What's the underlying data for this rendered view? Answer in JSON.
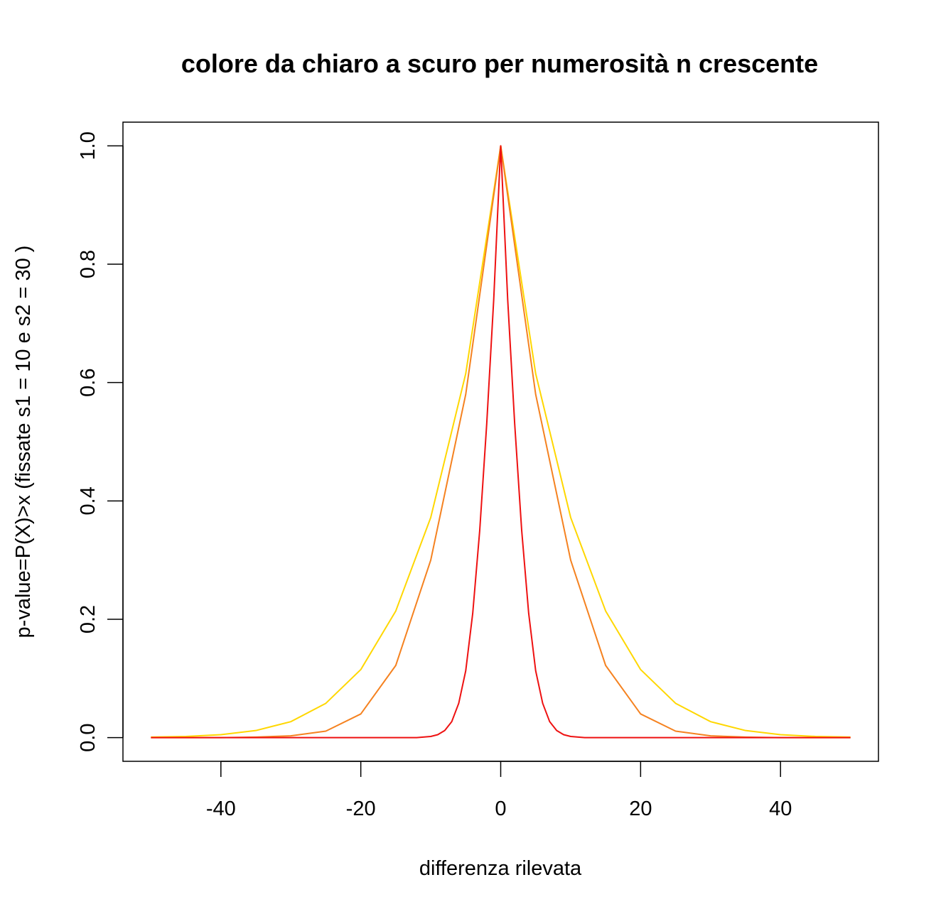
{
  "chart_data": {
    "type": "line",
    "title": "colore da chiaro a scuro per numerosità n crescente",
    "xlabel": "differenza rilevata",
    "ylabel": "p-value=P(X)>x (fissate s1 = 10 e s2 = 30 )",
    "xlim": [
      -54,
      54
    ],
    "ylim": [
      -0.04,
      1.04
    ],
    "x_ticks": [
      -40,
      -20,
      0,
      20,
      40
    ],
    "y_ticks": [
      0.0,
      0.2,
      0.4,
      0.6,
      0.8,
      1.0
    ],
    "x_tick_labels": [
      "-40",
      "-20",
      "0",
      "20",
      "40"
    ],
    "y_tick_labels": [
      "0.0",
      "0.2",
      "0.4",
      "0.6",
      "0.8",
      "1.0"
    ],
    "grid": false,
    "series": [
      {
        "color": "#FFD700",
        "x": [
          -50,
          -45,
          -40,
          -35,
          -30,
          -25,
          -20,
          -15,
          -10,
          -5,
          0,
          5,
          10,
          15,
          20,
          25,
          30,
          35,
          40,
          45,
          50
        ],
        "values": [
          0.001,
          0.002,
          0.005,
          0.012,
          0.027,
          0.058,
          0.115,
          0.214,
          0.372,
          0.615,
          1.0,
          0.615,
          0.372,
          0.214,
          0.115,
          0.058,
          0.027,
          0.012,
          0.005,
          0.002,
          0.001
        ]
      },
      {
        "color": "#F58220",
        "x": [
          -50,
          -40,
          -35,
          -30,
          -25,
          -20,
          -15,
          -10,
          -5,
          0,
          5,
          10,
          15,
          20,
          25,
          30,
          35,
          40,
          50
        ],
        "values": [
          0.0,
          0.0,
          0.001,
          0.003,
          0.011,
          0.04,
          0.122,
          0.3,
          0.58,
          1.0,
          0.58,
          0.3,
          0.122,
          0.04,
          0.011,
          0.003,
          0.001,
          0.0,
          0.0
        ]
      },
      {
        "color": "#EE1111",
        "x": [
          -50,
          -15,
          -12,
          -10,
          -9,
          -8,
          -7,
          -6,
          -5,
          -4,
          -3,
          -2,
          -1,
          0,
          1,
          2,
          3,
          4,
          5,
          6,
          7,
          8,
          9,
          10,
          12,
          15,
          50
        ],
        "values": [
          0.0,
          0.0,
          0.0,
          0.002,
          0.005,
          0.012,
          0.027,
          0.058,
          0.113,
          0.21,
          0.35,
          0.53,
          0.74,
          1.0,
          0.74,
          0.53,
          0.35,
          0.21,
          0.113,
          0.058,
          0.027,
          0.012,
          0.005,
          0.002,
          0.0,
          0.0,
          0.0
        ]
      }
    ]
  }
}
